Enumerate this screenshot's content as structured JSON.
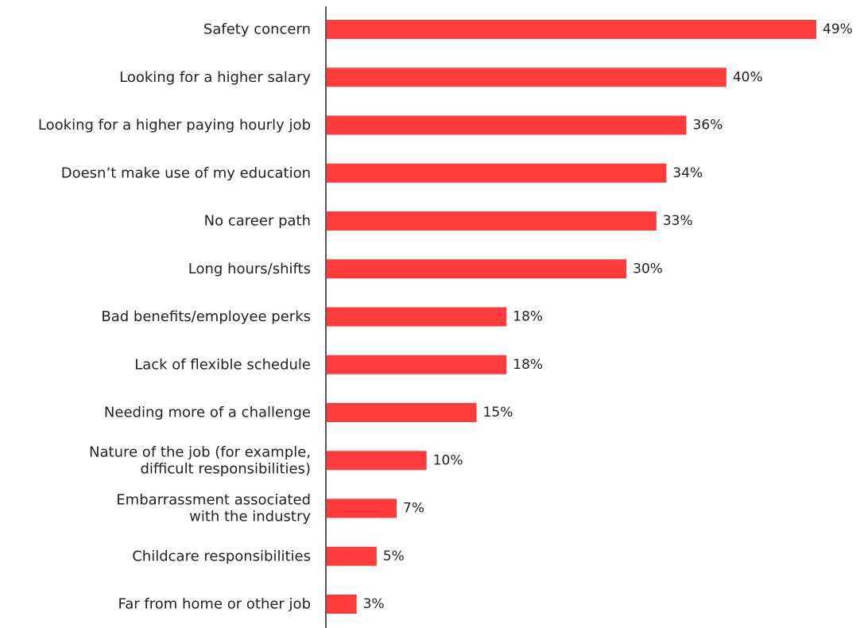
{
  "chart_data": {
    "type": "bar",
    "orientation": "horizontal",
    "categories": [
      "Safety concern",
      "Looking for a higher salary",
      "Looking for a higher paying hourly job",
      "Doesn’t make use of my education",
      "No career path",
      "Long hours/shifts",
      "Bad benefits/employee perks",
      "Lack of flexible schedule",
      "Needing more of a challenge",
      "Nature of the job (for example,\ndifficult responsibilities)",
      "Embarrassment associated\nwith the industry",
      "Childcare responsibilities",
      "Far from home or other job"
    ],
    "values": [
      49,
      40,
      36,
      34,
      33,
      30,
      18,
      18,
      15,
      10,
      7,
      5,
      3
    ],
    "value_labels": [
      "49%",
      "40%",
      "36%",
      "34%",
      "33%",
      "30%",
      "18%",
      "18%",
      "15%",
      "10%",
      "7%",
      "5%",
      "3%"
    ],
    "xlim": [
      0,
      49
    ],
    "grid": false,
    "legend": "none",
    "colors": {
      "bar": "#ff3b3b",
      "axis": "#222222",
      "text": "#222222"
    }
  }
}
